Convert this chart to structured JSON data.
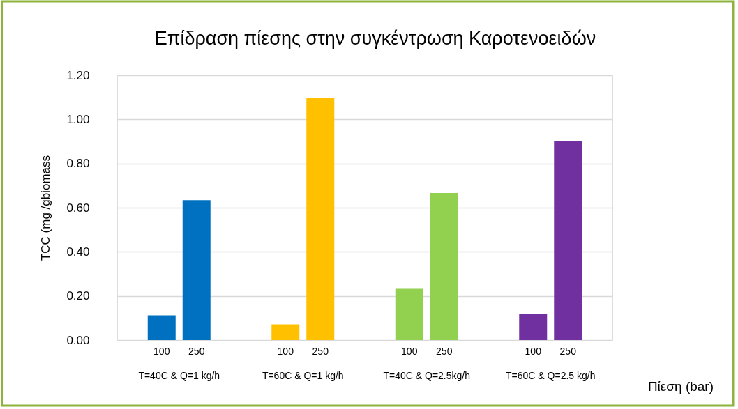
{
  "chart_data": {
    "type": "bar",
    "title": "Επίδραση πίεσης στην συγκέντρωση Καροτενοειδών",
    "xlabel": "Πίεση (bar)",
    "ylabel": "TCC (mg /gbiomass",
    "categories": [
      "100",
      "250",
      "100",
      "250",
      "100",
      "250",
      "100",
      "250"
    ],
    "values": [
      0.112,
      0.634,
      0.071,
      1.096,
      0.232,
      0.666,
      0.118,
      0.9
    ],
    "colors": [
      "#0070c0",
      "#0070c0",
      "#ffc000",
      "#ffc000",
      "#92d050",
      "#92d050",
      "#7030a0",
      "#7030a0"
    ],
    "annotations": [
      "T=40C & Q=1 kg/h",
      "T=60C & Q=1 kg/h",
      "T=40C & Q=2.5kg/h",
      "T=60C & Q=2.5 kg/h"
    ],
    "ylim": [
      0,
      1.2
    ],
    "yticks": [
      {
        "value": 0,
        "label": "0.00"
      },
      {
        "value": 0.2,
        "label": "0.20"
      },
      {
        "value": 0.4,
        "label": "0.40"
      },
      {
        "value": 0.6,
        "label": "0.60"
      },
      {
        "value": 0.8,
        "label": "0.80"
      },
      {
        "value": 1.0,
        "label": "1.00"
      },
      {
        "value": 1.2,
        "label": "1.20"
      }
    ],
    "grid": "y"
  }
}
